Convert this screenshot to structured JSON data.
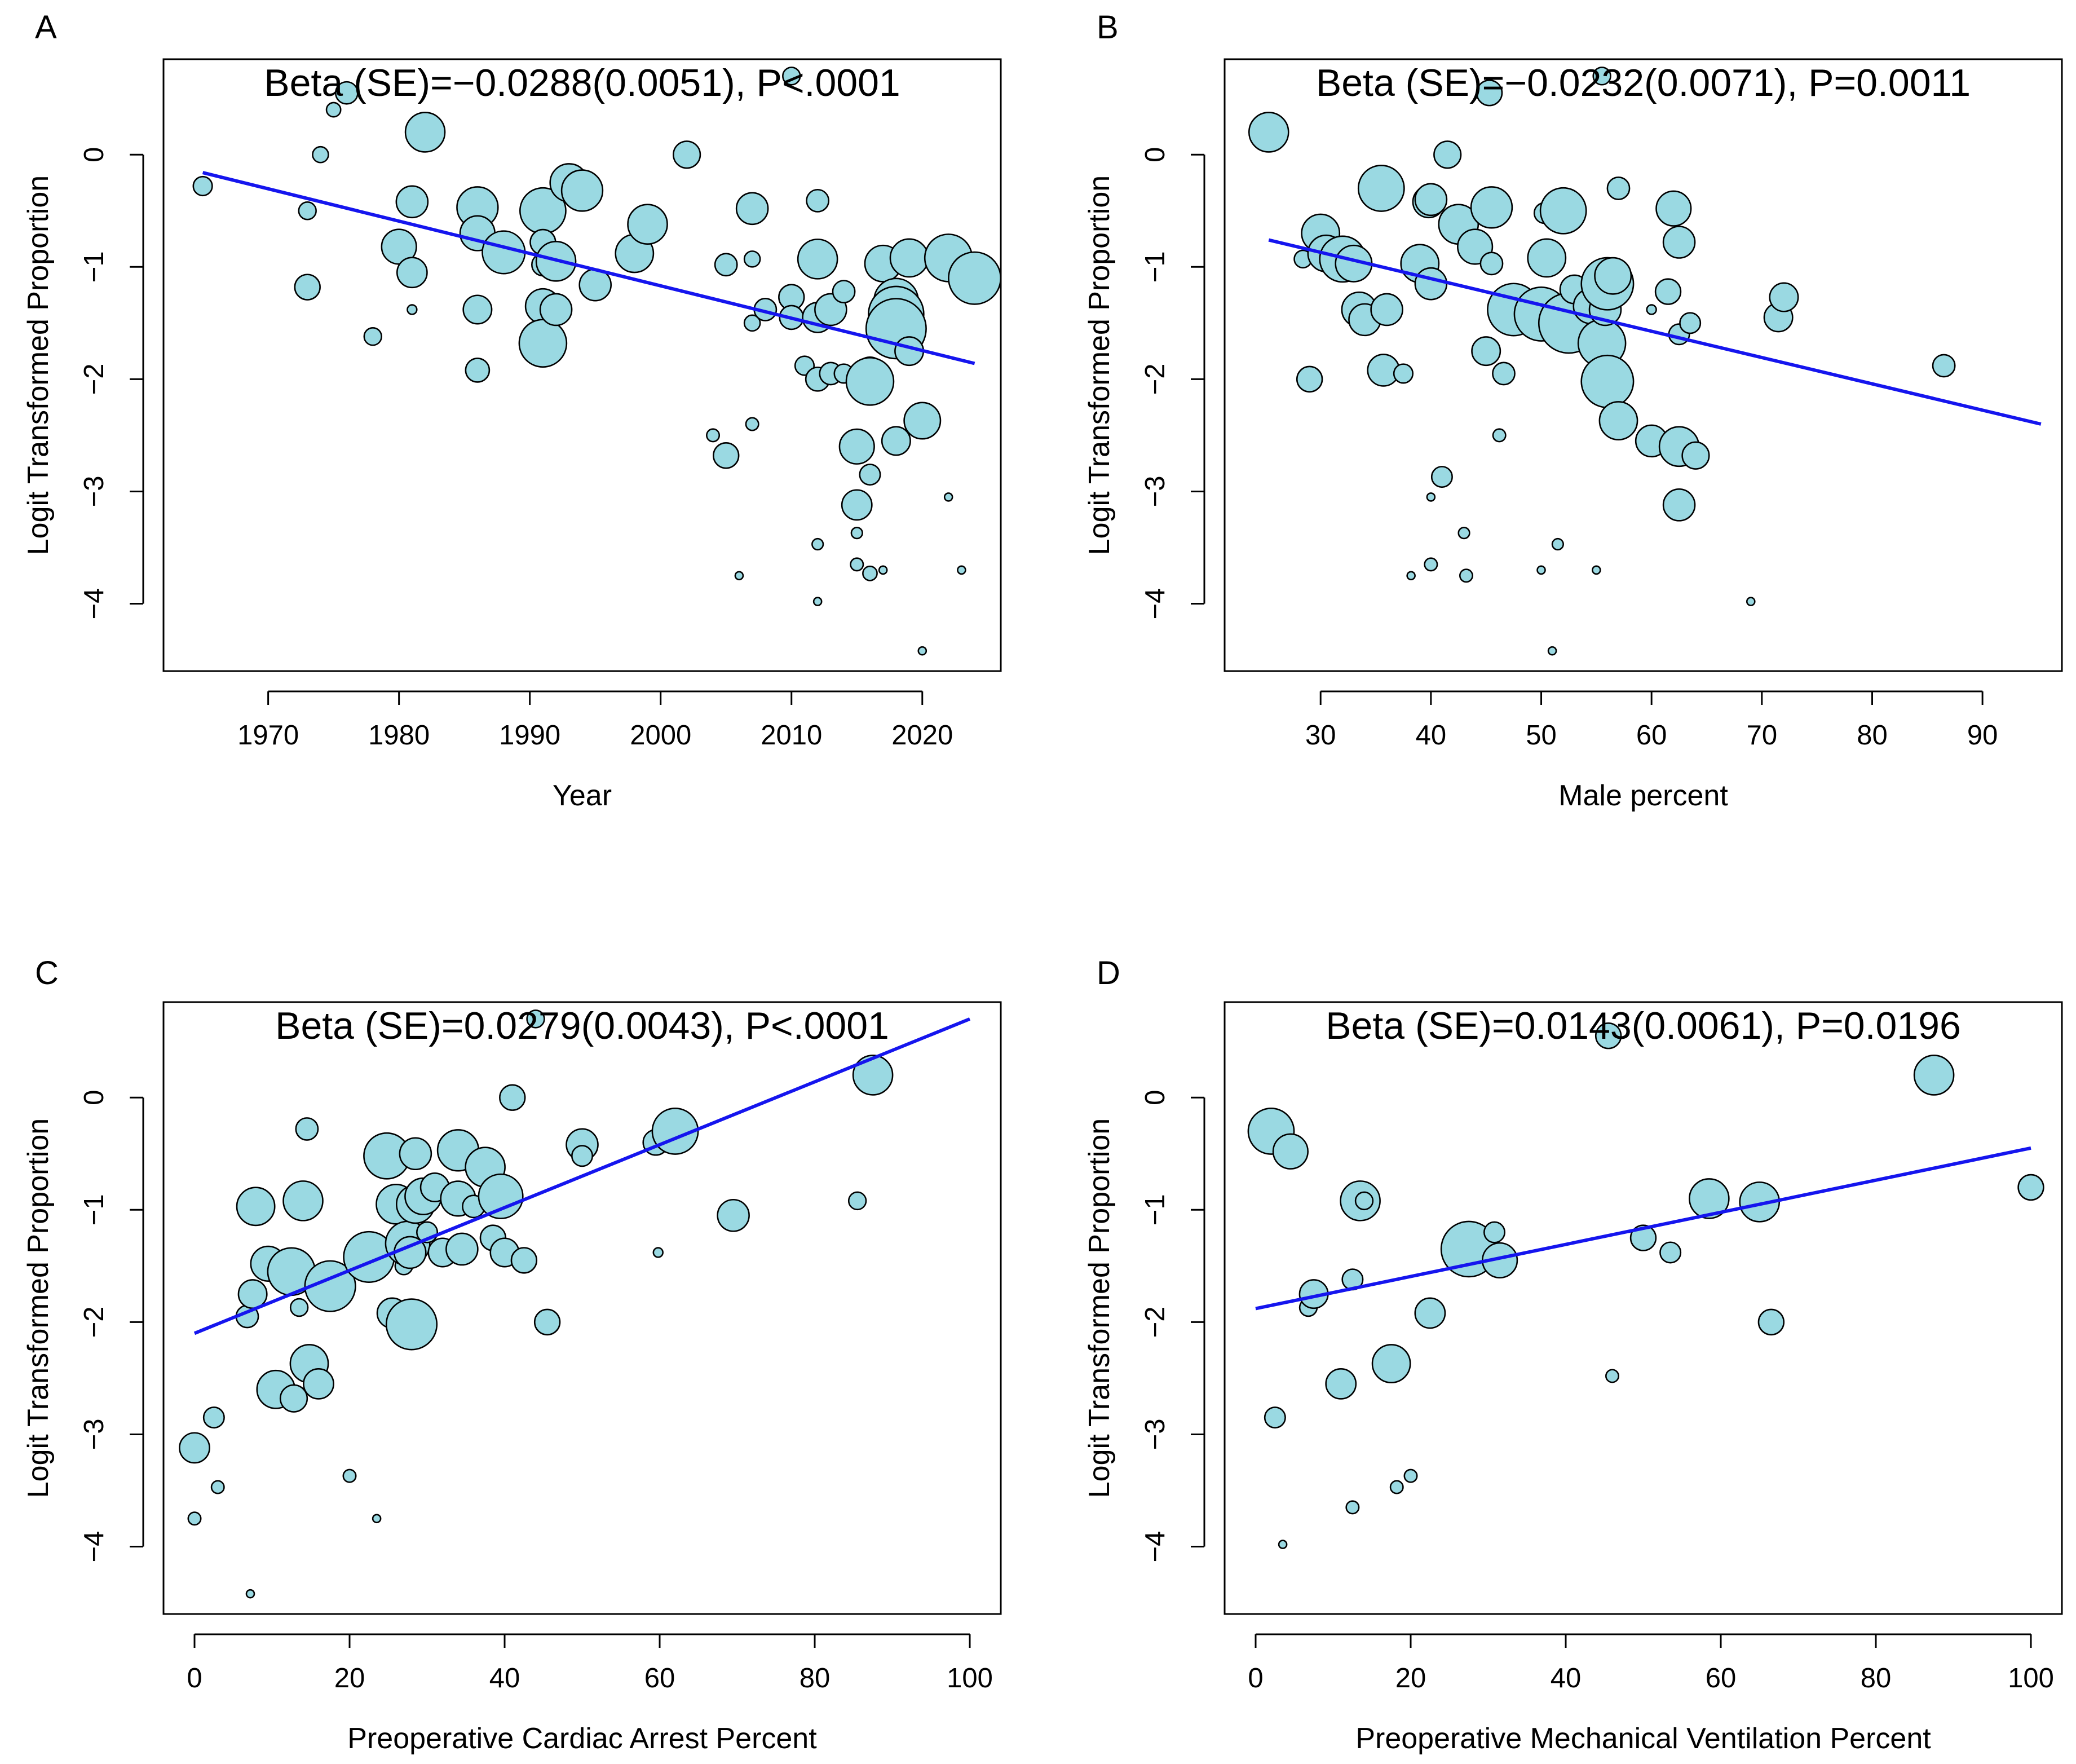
{
  "chart_data": [
    {
      "type": "scatter",
      "panel": "A",
      "annotation": "Beta (SE)=−0.0288(0.0051), P<.0001",
      "xlabel": "Year",
      "ylabel": "Logit Transformed Proportion",
      "xlim": [
        1962,
        2026
      ],
      "ylim": [
        -4.6,
        0.85
      ],
      "xticks": [
        1970,
        1980,
        1990,
        2000,
        2010,
        2020
      ],
      "yticks": [
        0,
        -1,
        -2,
        -3,
        -4
      ],
      "fit_line": {
        "x": [
          1965,
          2024
        ],
        "y": [
          -0.16,
          -1.86
        ]
      },
      "points": [
        [
          1965,
          -0.28,
          1.2
        ],
        [
          1973,
          -0.5,
          1.1
        ],
        [
          1973,
          -1.18,
          1.6
        ],
        [
          1974,
          0.0,
          1.0
        ],
        [
          1975,
          0.4,
          0.9
        ],
        [
          1976,
          0.55,
          1.4
        ],
        [
          1978,
          -1.62,
          1.1
        ],
        [
          1980,
          -0.82,
          2.2
        ],
        [
          1981,
          -0.42,
          2.0
        ],
        [
          1981,
          -1.05,
          1.9
        ],
        [
          1981,
          -1.38,
          0.6
        ],
        [
          1982,
          0.2,
          2.5
        ],
        [
          1986,
          -0.47,
          2.6
        ],
        [
          1986,
          -0.7,
          2.2
        ],
        [
          1986,
          -1.38,
          1.8
        ],
        [
          1986,
          -1.92,
          1.5
        ],
        [
          1988,
          -0.87,
          2.7
        ],
        [
          1991,
          -0.5,
          2.9
        ],
        [
          1991,
          -0.78,
          1.6
        ],
        [
          1991,
          -0.98,
          1.4
        ],
        [
          1991,
          -1.35,
          2.2
        ],
        [
          1991,
          -1.68,
          3.0
        ],
        [
          1992,
          -0.95,
          2.5
        ],
        [
          1992,
          -1.38,
          2.0
        ],
        [
          1993,
          -0.25,
          2.4
        ],
        [
          1994,
          -0.32,
          2.6
        ],
        [
          1995,
          -1.16,
          2.0
        ],
        [
          1998,
          -0.88,
          2.4
        ],
        [
          1999,
          -0.62,
          2.5
        ],
        [
          2002,
          0.0,
          1.7
        ],
        [
          2004,
          -2.5,
          0.8
        ],
        [
          2005,
          -0.98,
          1.4
        ],
        [
          2005,
          -2.68,
          1.6
        ],
        [
          2006,
          -3.75,
          0.5
        ],
        [
          2007,
          -0.48,
          2.0
        ],
        [
          2007,
          -0.93,
          1.0
        ],
        [
          2007,
          -1.5,
          1.0
        ],
        [
          2007,
          -2.4,
          0.8
        ],
        [
          2008,
          -1.38,
          1.4
        ],
        [
          2010,
          0.7,
          1.1
        ],
        [
          2010,
          -1.27,
          1.6
        ],
        [
          2010,
          -1.45,
          1.5
        ],
        [
          2011,
          -1.88,
          1.2
        ],
        [
          2012,
          -0.41,
          1.4
        ],
        [
          2012,
          -0.93,
          2.5
        ],
        [
          2012,
          -1.45,
          1.9
        ],
        [
          2012,
          -2.0,
          1.5
        ],
        [
          2012,
          -3.47,
          0.7
        ],
        [
          2012,
          -3.98,
          0.5
        ],
        [
          2013,
          -1.38,
          2.0
        ],
        [
          2013,
          -1.95,
          1.4
        ],
        [
          2014,
          -1.22,
          1.4
        ],
        [
          2014,
          -1.95,
          1.2
        ],
        [
          2015,
          -2.6,
          2.2
        ],
        [
          2015,
          -3.12,
          1.9
        ],
        [
          2015,
          -3.37,
          0.7
        ],
        [
          2015,
          -3.65,
          0.8
        ],
        [
          2016,
          -1.93,
          1.8
        ],
        [
          2016,
          -2.02,
          3.0
        ],
        [
          2016,
          -2.85,
          1.3
        ],
        [
          2016,
          -3.73,
          0.9
        ],
        [
          2017,
          -0.97,
          2.3
        ],
        [
          2017,
          -3.7,
          0.5
        ],
        [
          2018,
          -1.3,
          2.8
        ],
        [
          2018,
          -1.42,
          3.5
        ],
        [
          2018,
          -1.55,
          3.8
        ],
        [
          2018,
          -2.55,
          1.8
        ],
        [
          2019,
          -0.92,
          2.4
        ],
        [
          2019,
          -1.75,
          1.8
        ],
        [
          2020,
          -2.37,
          2.3
        ],
        [
          2020,
          -4.42,
          0.5
        ],
        [
          2022,
          -0.92,
          3.0
        ],
        [
          2022,
          -3.05,
          0.5
        ],
        [
          2023,
          -3.7,
          0.5
        ],
        [
          2024,
          -1.1,
          3.3
        ]
      ]
    },
    {
      "type": "scatter",
      "panel": "B",
      "annotation": "Beta (SE)=−0.0232(0.0071), P=0.0011",
      "xlabel": "Male percent",
      "ylabel": "Logit Transformed Proportion",
      "xlim": [
        21.3,
        97.2
      ],
      "ylim": [
        -4.6,
        0.85
      ],
      "xticks": [
        30,
        40,
        50,
        60,
        70,
        80,
        90
      ],
      "yticks": [
        0,
        -1,
        -2,
        -3,
        -4
      ],
      "fit_line": {
        "x": [
          25.3,
          95.3
        ],
        "y": [
          -0.76,
          -2.4
        ]
      },
      "points": [
        [
          25.3,
          0.2,
          2.5
        ],
        [
          28.4,
          -0.93,
          1.1
        ],
        [
          29.0,
          -2.0,
          1.6
        ],
        [
          30.0,
          -0.7,
          2.4
        ],
        [
          30.5,
          -0.88,
          2.3
        ],
        [
          32.0,
          -0.93,
          2.9
        ],
        [
          33.0,
          -0.97,
          2.3
        ],
        [
          33.5,
          -1.38,
          2.2
        ],
        [
          34.0,
          -1.47,
          2.0
        ],
        [
          35.5,
          -0.3,
          2.9
        ],
        [
          35.7,
          -1.92,
          2.0
        ],
        [
          36.0,
          -1.38,
          2.0
        ],
        [
          37.5,
          -1.95,
          1.2
        ],
        [
          38.2,
          -3.75,
          0.5
        ],
        [
          39.0,
          -0.97,
          2.4
        ],
        [
          39.8,
          -0.42,
          2.0
        ],
        [
          40.0,
          -0.4,
          2.0
        ],
        [
          40.0,
          -1.15,
          2.0
        ],
        [
          40.0,
          -3.05,
          0.5
        ],
        [
          40.0,
          -3.65,
          0.8
        ],
        [
          41.0,
          -2.87,
          1.3
        ],
        [
          41.5,
          0.0,
          1.7
        ],
        [
          42.5,
          -0.62,
          2.5
        ],
        [
          43.0,
          -3.37,
          0.7
        ],
        [
          43.2,
          -3.75,
          0.8
        ],
        [
          44.0,
          -0.82,
          2.2
        ],
        [
          45.0,
          -1.75,
          1.8
        ],
        [
          45.3,
          0.55,
          1.6
        ],
        [
          45.5,
          -0.47,
          2.6
        ],
        [
          45.5,
          -0.97,
          1.4
        ],
        [
          46.2,
          -2.5,
          0.8
        ],
        [
          46.6,
          -1.38,
          1.6
        ],
        [
          46.6,
          -1.95,
          1.4
        ],
        [
          47.5,
          -1.38,
          3.3
        ],
        [
          50.0,
          -1.42,
          3.4
        ],
        [
          50.0,
          -3.7,
          0.5
        ],
        [
          50.3,
          -0.52,
          1.3
        ],
        [
          50.5,
          -0.92,
          2.4
        ],
        [
          51.0,
          -4.42,
          0.5
        ],
        [
          51.5,
          -3.47,
          0.7
        ],
        [
          52.0,
          -0.5,
          2.9
        ],
        [
          52.5,
          -1.5,
          3.8
        ],
        [
          53.0,
          -1.2,
          1.8
        ],
        [
          54.5,
          -1.35,
          2.2
        ],
        [
          55.0,
          -3.7,
          0.5
        ],
        [
          55.5,
          0.7,
          1.1
        ],
        [
          55.5,
          -1.68,
          3.0
        ],
        [
          55.8,
          -1.38,
          2.0
        ],
        [
          56.0,
          -1.15,
          3.3
        ],
        [
          56.0,
          -2.02,
          3.3
        ],
        [
          56.5,
          -1.08,
          2.3
        ],
        [
          57.0,
          -0.3,
          1.4
        ],
        [
          57.0,
          -2.37,
          2.4
        ],
        [
          60.0,
          -1.38,
          0.6
        ],
        [
          60.0,
          -2.55,
          2.0
        ],
        [
          61.5,
          -1.22,
          1.6
        ],
        [
          62.0,
          -0.48,
          2.2
        ],
        [
          62.5,
          -0.78,
          2.0
        ],
        [
          62.5,
          -1.6,
          1.3
        ],
        [
          62.5,
          -2.6,
          2.5
        ],
        [
          62.5,
          -3.12,
          2.0
        ],
        [
          63.5,
          -1.5,
          1.3
        ],
        [
          64.0,
          -2.68,
          1.7
        ],
        [
          69.0,
          -3.98,
          0.5
        ],
        [
          71.5,
          -1.45,
          1.8
        ],
        [
          72.0,
          -1.27,
          1.8
        ],
        [
          86.5,
          -1.88,
          1.4
        ]
      ]
    },
    {
      "type": "scatter",
      "panel": "C",
      "annotation": "Beta (SE)=0.0279(0.0043), P<.0001",
      "xlabel": "Preoperative Cardiac Arrest Percent",
      "ylabel": "Logit Transformed Proportion",
      "xlim": [
        -4,
        104
      ],
      "ylim": [
        -4.6,
        0.85
      ],
      "xticks": [
        0,
        20,
        40,
        60,
        80,
        100
      ],
      "yticks": [
        0,
        -1,
        -2,
        -3,
        -4
      ],
      "fit_line": {
        "x": [
          0,
          100
        ],
        "y": [
          -2.1,
          0.7
        ]
      },
      "points": [
        [
          0.0,
          -3.12,
          1.9
        ],
        [
          0.0,
          -3.75,
          0.8
        ],
        [
          2.5,
          -2.85,
          1.3
        ],
        [
          3.0,
          -3.47,
          0.8
        ],
        [
          6.8,
          -1.95,
          1.4
        ],
        [
          7.2,
          -4.42,
          0.5
        ],
        [
          7.5,
          -1.75,
          1.8
        ],
        [
          7.9,
          -0.97,
          2.4
        ],
        [
          9.5,
          -1.48,
          2.2
        ],
        [
          10.5,
          -2.6,
          2.4
        ],
        [
          12.0,
          -1.62,
          1.3
        ],
        [
          12.5,
          -1.55,
          3.0
        ],
        [
          12.8,
          -2.68,
          1.7
        ],
        [
          13.5,
          -1.87,
          1.1
        ],
        [
          14.0,
          -0.92,
          2.5
        ],
        [
          14.5,
          -0.28,
          1.4
        ],
        [
          14.8,
          -2.37,
          2.4
        ],
        [
          15.5,
          -2.52,
          1.2
        ],
        [
          16.0,
          -2.55,
          1.9
        ],
        [
          17.5,
          -1.68,
          3.2
        ],
        [
          20.0,
          -3.37,
          0.8
        ],
        [
          22.5,
          -1.42,
          3.2
        ],
        [
          23.5,
          -3.75,
          0.5
        ],
        [
          24.8,
          -0.52,
          2.9
        ],
        [
          25.5,
          -1.92,
          1.9
        ],
        [
          26.0,
          -0.95,
          2.5
        ],
        [
          27.0,
          -1.5,
          1.1
        ],
        [
          27.5,
          -1.3,
          2.8
        ],
        [
          27.8,
          -1.38,
          2.0
        ],
        [
          28.0,
          -2.02,
          3.2
        ],
        [
          28.5,
          -0.5,
          2.0
        ],
        [
          28.5,
          -0.95,
          2.4
        ],
        [
          29.5,
          -0.88,
          2.3
        ],
        [
          30.0,
          -1.2,
          1.3
        ],
        [
          31.0,
          -0.8,
          1.8
        ],
        [
          32.0,
          -1.38,
          1.8
        ],
        [
          34.0,
          -0.47,
          2.6
        ],
        [
          34.0,
          -0.9,
          2.2
        ],
        [
          34.5,
          -1.35,
          2.0
        ],
        [
          36.0,
          -0.97,
          1.4
        ],
        [
          37.5,
          -0.62,
          2.5
        ],
        [
          38.5,
          -1.25,
          1.6
        ],
        [
          39.5,
          -0.88,
          2.8
        ],
        [
          40.0,
          -1.38,
          1.8
        ],
        [
          41.0,
          0.0,
          1.6
        ],
        [
          42.5,
          -1.45,
          1.6
        ],
        [
          44.0,
          0.7,
          1.1
        ],
        [
          45.5,
          -2.0,
          1.6
        ],
        [
          50.0,
          -0.42,
          2.0
        ],
        [
          50.0,
          -0.52,
          1.3
        ],
        [
          59.5,
          -0.4,
          1.6
        ],
        [
          59.8,
          -1.38,
          0.6
        ],
        [
          62.0,
          -0.3,
          2.9
        ],
        [
          69.5,
          -1.05,
          2.0
        ],
        [
          85.5,
          -0.92,
          1.1
        ],
        [
          87.5,
          0.2,
          2.5
        ]
      ]
    },
    {
      "type": "scatter",
      "panel": "D",
      "annotation": "Beta (SE)=0.0143(0.0061), P=0.0196",
      "xlabel": "Preoperative Mechanical Ventilation Percent",
      "ylabel": "Logit Transformed Proportion",
      "xlim": [
        -4,
        104
      ],
      "ylim": [
        -4.6,
        0.85
      ],
      "xticks": [
        0,
        20,
        40,
        60,
        80,
        100
      ],
      "yticks": [
        0,
        -1,
        -2,
        -3,
        -4
      ],
      "fit_line": {
        "x": [
          0,
          100
        ],
        "y": [
          -1.88,
          -0.45
        ]
      },
      "points": [
        [
          2.0,
          -0.3,
          2.9
        ],
        [
          2.5,
          -2.85,
          1.3
        ],
        [
          3.5,
          -3.98,
          0.5
        ],
        [
          4.5,
          -0.48,
          2.2
        ],
        [
          6.8,
          -1.87,
          1.1
        ],
        [
          7.5,
          -1.75,
          1.8
        ],
        [
          11.0,
          -2.55,
          1.9
        ],
        [
          12.5,
          -1.62,
          1.3
        ],
        [
          12.5,
          -3.65,
          0.8
        ],
        [
          13.5,
          -0.92,
          2.5
        ],
        [
          14.0,
          -0.92,
          1.1
        ],
        [
          17.5,
          -2.37,
          2.4
        ],
        [
          18.2,
          -3.47,
          0.8
        ],
        [
          20.0,
          -3.37,
          0.8
        ],
        [
          22.5,
          -1.92,
          1.9
        ],
        [
          27.5,
          -1.35,
          3.5
        ],
        [
          30.8,
          -1.2,
          1.3
        ],
        [
          31.5,
          -1.45,
          2.2
        ],
        [
          45.5,
          0.55,
          1.6
        ],
        [
          46.0,
          -2.48,
          0.8
        ],
        [
          50.0,
          -1.25,
          1.6
        ],
        [
          53.5,
          -1.38,
          1.3
        ],
        [
          58.5,
          -0.9,
          2.5
        ],
        [
          65.0,
          -0.93,
          2.5
        ],
        [
          66.5,
          -2.0,
          1.6
        ],
        [
          87.5,
          0.2,
          2.5
        ],
        [
          100.0,
          -0.8,
          1.6
        ]
      ]
    }
  ]
}
